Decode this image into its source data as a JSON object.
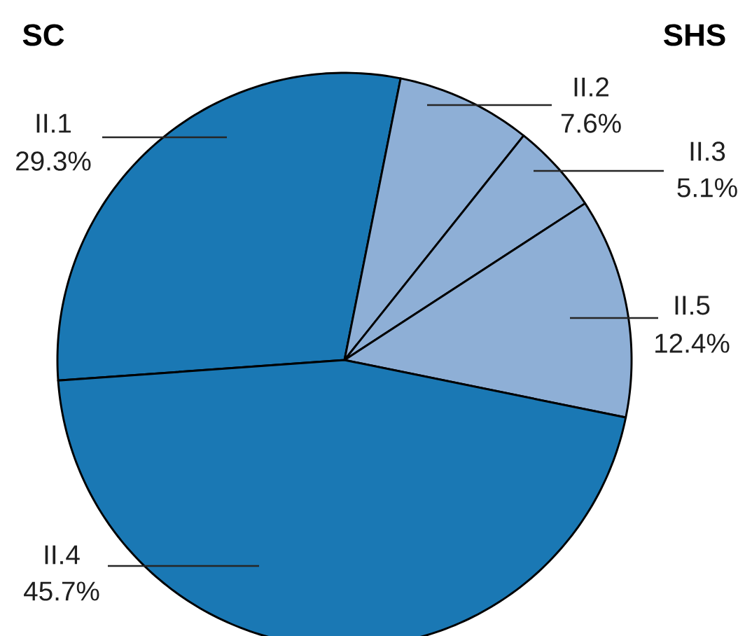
{
  "chart_data": {
    "type": "pie",
    "categories": [
      "II.1",
      "II.2",
      "II.3",
      "II.5",
      "II.4"
    ],
    "values": [
      29.3,
      7.6,
      5.1,
      12.4,
      45.7
    ],
    "colors": [
      "#1a78b4",
      "#8eafd6",
      "#8eafd6",
      "#8eafd6",
      "#1a78b4"
    ],
    "value_labels": [
      "29.3%",
      "7.6%",
      "5.1%",
      "12.4%",
      "45.7%"
    ],
    "annotations": [
      "SC",
      "SHS"
    ]
  }
}
